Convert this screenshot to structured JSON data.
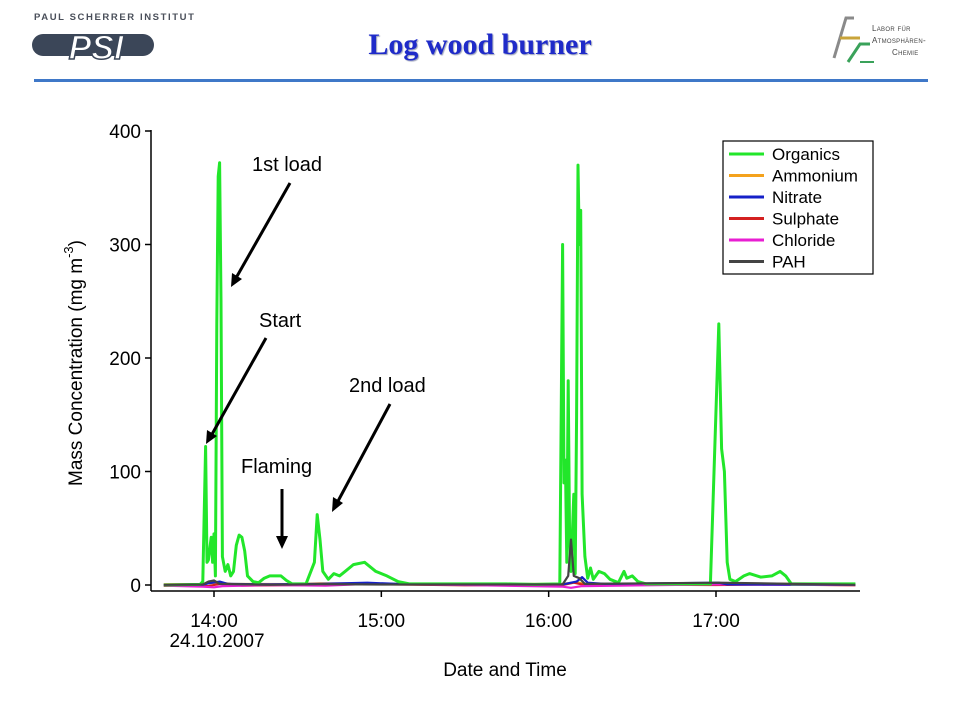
{
  "header": {
    "title": "Log wood burner",
    "psi_institute": "PAUL SCHERRER INSTITUT",
    "psi_mark": "PSI",
    "lac_lines": [
      "Labor für",
      "Atmosphären-",
      "Chemie"
    ]
  },
  "colors": {
    "title": "#1f2bc9",
    "rule": "#3f78c8"
  },
  "chart_data": {
    "type": "line",
    "xlabel": "Date and Time",
    "ylabel": "Mass Concentration (mg m",
    "ylabel_sup": "-3",
    "ylabel_close": ")",
    "ylim": [
      0,
      400
    ],
    "xlim": [
      "13:42",
      "17:50"
    ],
    "y_ticks": [
      {
        "value": 0,
        "label": "0"
      },
      {
        "value": 100,
        "label": "100"
      },
      {
        "value": 200,
        "label": "200"
      },
      {
        "value": 300,
        "label": "300"
      },
      {
        "value": 400,
        "label": "400"
      }
    ],
    "x_ticks": [
      {
        "time": "14:00",
        "label": "14:00",
        "sublabel": "24.10.2007"
      },
      {
        "time": "15:00",
        "label": "15:00"
      },
      {
        "time": "16:00",
        "label": "16:00"
      },
      {
        "time": "17:00",
        "label": "17:00"
      }
    ],
    "legend_position": "top-right",
    "series": [
      {
        "name": "Organics",
        "color": "#22e62a",
        "points": [
          [
            "13:42",
            0
          ],
          [
            "13:55",
            0.5
          ],
          [
            "13:56",
            3
          ],
          [
            "13:57",
            122
          ],
          [
            "13:57.5",
            20
          ],
          [
            "13:58",
            22
          ],
          [
            "13:59",
            42
          ],
          [
            "13:59.5",
            20
          ],
          [
            "14:00",
            45
          ],
          [
            "14:00.5",
            8
          ],
          [
            "14:01",
            230
          ],
          [
            "14:01.5",
            360
          ],
          [
            "14:02",
            372
          ],
          [
            "14:02.5",
            250
          ],
          [
            "14:03",
            25
          ],
          [
            "14:04",
            12
          ],
          [
            "14:05",
            18
          ],
          [
            "14:06",
            8
          ],
          [
            "14:07",
            12
          ],
          [
            "14:08",
            35
          ],
          [
            "14:09",
            44
          ],
          [
            "14:10",
            42
          ],
          [
            "14:11",
            30
          ],
          [
            "14:12",
            8
          ],
          [
            "14:14",
            3
          ],
          [
            "14:16",
            2
          ],
          [
            "14:18",
            6
          ],
          [
            "14:20",
            8
          ],
          [
            "14:24",
            8
          ],
          [
            "14:26",
            4
          ],
          [
            "14:28",
            1
          ],
          [
            "14:33",
            1
          ],
          [
            "14:36",
            20
          ],
          [
            "14:37",
            62
          ],
          [
            "14:38",
            40
          ],
          [
            "14:39",
            12
          ],
          [
            "14:41",
            5
          ],
          [
            "14:43",
            10
          ],
          [
            "14:45",
            8
          ],
          [
            "14:47",
            12
          ],
          [
            "14:50",
            18
          ],
          [
            "14:54",
            20
          ],
          [
            "14:58",
            12
          ],
          [
            "15:02",
            8
          ],
          [
            "15:06",
            3
          ],
          [
            "15:10",
            1
          ],
          [
            "15:45",
            1
          ],
          [
            "15:55",
            0.5
          ],
          [
            "16:04",
            1
          ],
          [
            "16:05",
            300
          ],
          [
            "16:05.5",
            90
          ],
          [
            "16:06",
            110
          ],
          [
            "16:06.5",
            20
          ],
          [
            "16:07",
            180
          ],
          [
            "16:07.5",
            40
          ],
          [
            "16:08",
            12
          ],
          [
            "16:09",
            80
          ],
          [
            "16:09.5",
            10
          ],
          [
            "16:10",
            150
          ],
          [
            "16:10.5",
            370
          ],
          [
            "16:11",
            300
          ],
          [
            "16:11.5",
            330
          ],
          [
            "16:12",
            80
          ],
          [
            "16:13",
            25
          ],
          [
            "16:14",
            6
          ],
          [
            "16:15",
            15
          ],
          [
            "16:16",
            5
          ],
          [
            "16:18",
            12
          ],
          [
            "16:20",
            10
          ],
          [
            "16:22",
            5
          ],
          [
            "16:25",
            2
          ],
          [
            "16:27",
            12
          ],
          [
            "16:28",
            6
          ],
          [
            "16:30",
            8
          ],
          [
            "16:32",
            3
          ],
          [
            "16:35",
            1
          ],
          [
            "16:58",
            1
          ],
          [
            "17:01",
            230
          ],
          [
            "17:02",
            120
          ],
          [
            "17:03",
            100
          ],
          [
            "17:04",
            20
          ],
          [
            "17:05",
            5
          ],
          [
            "17:07",
            3
          ],
          [
            "17:10",
            8
          ],
          [
            "17:12",
            10
          ],
          [
            "17:16",
            7
          ],
          [
            "17:20",
            8
          ],
          [
            "17:23",
            12
          ],
          [
            "17:25",
            8
          ],
          [
            "17:27",
            1
          ],
          [
            "17:50",
            1
          ]
        ]
      },
      {
        "name": "Ammonium",
        "color": "#f4a21c",
        "points": [
          [
            "13:42",
            0.6
          ],
          [
            "13:56",
            0.8
          ],
          [
            "13:58",
            1.5
          ],
          [
            "14:02",
            2
          ],
          [
            "14:06",
            1
          ],
          [
            "14:30",
            0.8
          ],
          [
            "14:38",
            1.5
          ],
          [
            "14:55",
            1.2
          ],
          [
            "15:20",
            0.6
          ],
          [
            "16:05",
            1
          ],
          [
            "16:10",
            2.5
          ],
          [
            "16:13",
            1
          ],
          [
            "17:02",
            1.5
          ],
          [
            "17:50",
            0.6
          ]
        ]
      },
      {
        "name": "Nitrate",
        "color": "#1520c8",
        "points": [
          [
            "13:42",
            0.3
          ],
          [
            "13:56",
            0.3
          ],
          [
            "13:58",
            1.5
          ],
          [
            "14:02",
            3
          ],
          [
            "14:05",
            1
          ],
          [
            "14:20",
            0.5
          ],
          [
            "14:38",
            1
          ],
          [
            "14:55",
            2
          ],
          [
            "15:10",
            0.5
          ],
          [
            "16:05",
            0.5
          ],
          [
            "16:08",
            2
          ],
          [
            "16:10",
            3
          ],
          [
            "16:12",
            7
          ],
          [
            "16:14",
            2
          ],
          [
            "16:20",
            1
          ],
          [
            "17:01",
            2
          ],
          [
            "17:04",
            0.5
          ],
          [
            "17:50",
            0.3
          ]
        ]
      },
      {
        "name": "Sulphate",
        "color": "#d42020",
        "points": [
          [
            "13:42",
            -0.8
          ],
          [
            "13:50",
            -0.4
          ],
          [
            "13:58",
            -1
          ],
          [
            "14:02",
            1
          ],
          [
            "14:10",
            -0.6
          ],
          [
            "14:30",
            0
          ],
          [
            "14:55",
            0.8
          ],
          [
            "15:30",
            -0.3
          ],
          [
            "16:05",
            0
          ],
          [
            "16:09",
            2
          ],
          [
            "16:12",
            0.5
          ],
          [
            "17:00",
            0
          ],
          [
            "17:20",
            0.4
          ],
          [
            "17:50",
            -0.3
          ]
        ]
      },
      {
        "name": "Chloride",
        "color": "#e81ed2",
        "points": [
          [
            "13:42",
            -0.5
          ],
          [
            "13:56",
            -1.5
          ],
          [
            "14:00",
            -2
          ],
          [
            "14:03",
            -1
          ],
          [
            "14:20",
            0
          ],
          [
            "14:40",
            -0.5
          ],
          [
            "14:55",
            1
          ],
          [
            "15:30",
            0
          ],
          [
            "16:05",
            -1.5
          ],
          [
            "16:08",
            -2.5
          ],
          [
            "16:12",
            -1
          ],
          [
            "17:00",
            0.5
          ],
          [
            "17:50",
            0
          ]
        ]
      },
      {
        "name": "PAH",
        "color": "#444444",
        "points": [
          [
            "13:42",
            0.2
          ],
          [
            "13:56",
            0.4
          ],
          [
            "13:58",
            3
          ],
          [
            "14:00",
            4
          ],
          [
            "14:02",
            1
          ],
          [
            "14:20",
            0.2
          ],
          [
            "14:38",
            0.8
          ],
          [
            "15:00",
            0.4
          ],
          [
            "16:05",
            0.5
          ],
          [
            "16:07",
            8
          ],
          [
            "16:08",
            40
          ],
          [
            "16:09",
            8
          ],
          [
            "16:11",
            6
          ],
          [
            "16:13",
            1
          ],
          [
            "17:01",
            2
          ],
          [
            "17:50",
            0.2
          ]
        ]
      }
    ],
    "annotations": [
      {
        "text": "1st load",
        "time": "14:00",
        "value": 375
      },
      {
        "text": "Start",
        "time": "13:56",
        "value": 123
      },
      {
        "text": "2nd load",
        "time": "14:37",
        "value": 63
      },
      {
        "text": "Flaming",
        "time": "14:25",
        "value": 33
      }
    ]
  }
}
